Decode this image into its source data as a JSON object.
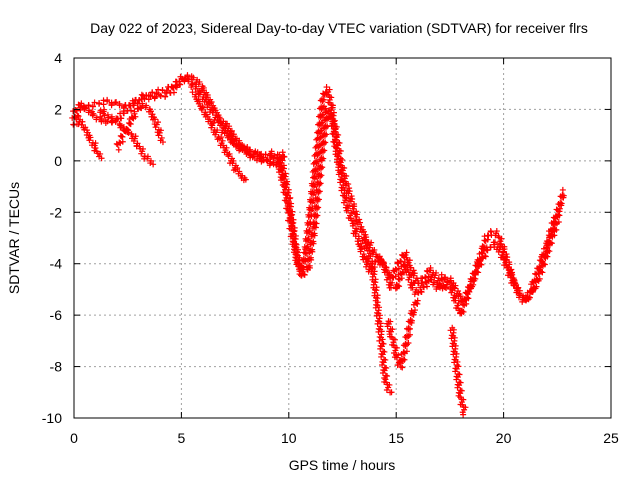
{
  "chart_data": {
    "type": "scatter",
    "title": "Day 022 of 2023, Sidereal Day-to-day VTEC variation (SDTVAR) for receiver flrs",
    "xlabel": "GPS time / hours",
    "ylabel": "SDTVAR / TECUs",
    "xlim": [
      0,
      25
    ],
    "ylim": [
      -10,
      4
    ],
    "xticks": [
      0,
      5,
      10,
      15,
      20,
      25
    ],
    "yticks": [
      -10,
      -8,
      -6,
      -4,
      -2,
      0,
      2,
      4
    ],
    "grid": true,
    "legend": "none",
    "marker": "plus",
    "color": "#ff0000",
    "series": [
      {
        "x": [
          0.0,
          0.3,
          0.6,
          1.0,
          1.5,
          2.0,
          2.4,
          2.8,
          3.2,
          3.6,
          4.0,
          4.4,
          4.7,
          5.0,
          5.3,
          5.6,
          5.9,
          6.2,
          6.5,
          6.8,
          7.1,
          7.4,
          7.7,
          8.0,
          8.4,
          8.8,
          9.2,
          9.5,
          9.8,
          10.0,
          10.2,
          10.4,
          10.6,
          10.8,
          11.0,
          11.2,
          11.4,
          11.6,
          11.8,
          12.0,
          12.2,
          12.4,
          12.6,
          12.8,
          13.0,
          13.2,
          13.4,
          13.6,
          13.8,
          14.0,
          14.2,
          14.4,
          14.6,
          14.8,
          15.0,
          15.2,
          15.4,
          15.6,
          15.8,
          16.0,
          16.2,
          16.4,
          16.6,
          16.8,
          17.0,
          17.2,
          17.4,
          17.6,
          17.8,
          18.0,
          18.2,
          18.4,
          18.6,
          18.8,
          19.0,
          19.2,
          19.4,
          19.6,
          19.8,
          20.0,
          20.2,
          20.4,
          20.6,
          20.8,
          21.0,
          21.2,
          21.4,
          21.6,
          21.8,
          22.0,
          22.2,
          22.4,
          22.6,
          22.8
        ],
        "y": [
          1.6,
          2.0,
          2.1,
          2.2,
          2.3,
          2.2,
          2.1,
          2.3,
          2.5,
          2.6,
          2.7,
          2.8,
          3.0,
          3.2,
          3.1,
          2.9,
          2.6,
          2.2,
          1.8,
          1.4,
          1.0,
          0.7,
          0.5,
          0.4,
          0.3,
          0.2,
          0.3,
          0.0,
          -1.0,
          -2.0,
          -3.0,
          -4.0,
          -4.3,
          -3.5,
          -2.0,
          -0.5,
          1.0,
          2.5,
          2.8,
          2.0,
          0.5,
          -0.5,
          -1.5,
          -2.0,
          -2.5,
          -3.0,
          -3.5,
          -4.0,
          -4.3,
          -4.0,
          -3.8,
          -4.0,
          -4.5,
          -5.0,
          -5.0,
          -4.5,
          -4.0,
          -4.5,
          -5.0,
          -5.2,
          -5.0,
          -4.8,
          -4.5,
          -4.8,
          -5.0,
          -4.5,
          -4.8,
          -5.0,
          -5.5,
          -6.0,
          -5.5,
          -5.0,
          -4.5,
          -4.0,
          -3.5,
          -3.0,
          -2.8,
          -2.8,
          -3.0,
          -3.5,
          -4.0,
          -4.5,
          -5.0,
          -5.3,
          -5.5,
          -5.2,
          -4.8,
          -4.3,
          -3.8,
          -3.3,
          -2.8,
          -2.3,
          -1.8,
          -1.2
        ]
      },
      {
        "x": [
          0.0,
          0.3,
          0.6,
          0.9,
          1.2,
          1.6,
          2.0,
          2.4,
          2.8,
          3.2,
          3.6,
          4.0,
          4.4,
          4.8,
          5.2,
          5.6,
          6.0,
          6.4,
          6.8,
          7.2,
          7.6,
          8.0,
          8.4,
          8.8,
          9.2,
          9.6,
          10.0,
          10.3,
          10.6,
          10.9,
          11.2,
          11.5,
          11.8,
          12.1,
          12.4,
          12.7,
          13.0,
          13.3,
          13.6,
          13.9,
          14.2,
          14.5,
          14.8,
          15.1,
          15.4,
          15.7,
          16.0,
          16.3,
          16.6,
          16.9,
          17.2,
          17.5,
          17.8,
          18.1,
          18.4,
          18.7,
          19.0,
          19.3,
          19.6,
          19.9,
          20.2,
          20.5,
          20.8,
          21.1,
          21.4,
          21.7,
          22.0,
          22.3,
          22.6
        ],
        "y": [
          1.9,
          2.2,
          2.0,
          1.8,
          1.6,
          1.5,
          1.6,
          1.9,
          2.2,
          2.4,
          2.5,
          2.5,
          2.6,
          2.9,
          3.3,
          3.2,
          2.8,
          2.2,
          1.6,
          1.1,
          0.6,
          0.3,
          0.1,
          0.0,
          0.1,
          0.2,
          -1.5,
          -3.2,
          -4.5,
          -4.2,
          -2.5,
          0.0,
          2.0,
          1.5,
          0.0,
          -1.0,
          -1.8,
          -2.5,
          -3.0,
          -3.5,
          -3.8,
          -4.2,
          -4.6,
          -4.0,
          -3.6,
          -4.2,
          -4.8,
          -4.6,
          -4.2,
          -4.6,
          -5.0,
          -4.6,
          -5.0,
          -5.5,
          -5.0,
          -4.4,
          -3.8,
          -3.4,
          -3.2,
          -3.6,
          -4.2,
          -4.8,
          -5.2,
          -5.4,
          -5.0,
          -4.4,
          -3.6,
          -2.8,
          -2.0
        ]
      },
      {
        "x": [
          0.0,
          0.2,
          0.4,
          0.6,
          0.8,
          1.0,
          1.2
        ],
        "y": [
          1.4,
          1.6,
          1.4,
          1.1,
          0.8,
          0.5,
          0.1
        ]
      },
      {
        "x": [
          1.2,
          1.5,
          1.8,
          2.1,
          2.4,
          2.7,
          3.0,
          3.3,
          3.6
        ],
        "y": [
          2.0,
          1.8,
          1.6,
          1.4,
          1.2,
          1.0,
          0.6,
          0.2,
          -0.1
        ]
      },
      {
        "x": [
          2.0,
          2.3,
          2.6,
          2.9,
          3.2,
          3.5,
          3.8,
          4.1
        ],
        "y": [
          0.5,
          1.0,
          1.5,
          1.9,
          2.2,
          2.0,
          1.5,
          0.8
        ]
      },
      {
        "x": [
          5.6,
          6.0,
          6.4,
          6.8,
          7.2,
          7.6,
          8.0
        ],
        "y": [
          2.6,
          2.0,
          1.4,
          0.8,
          0.2,
          -0.4,
          -0.8
        ]
      },
      {
        "x": [
          7.0,
          7.4,
          7.8,
          8.2,
          8.6,
          9.0,
          9.4,
          9.8
        ],
        "y": [
          1.5,
          1.0,
          0.6,
          0.4,
          0.2,
          0.0,
          -0.2,
          0.3
        ]
      },
      {
        "x": [
          13.5,
          13.7,
          13.9,
          14.1,
          14.3,
          14.5,
          14.7
        ],
        "y": [
          -3.0,
          -3.6,
          -4.2,
          -5.5,
          -7.0,
          -8.5,
          -9.0
        ]
      },
      {
        "x": [
          14.6,
          14.8,
          15.0,
          15.2,
          15.4,
          15.6,
          15.8,
          16.0
        ],
        "y": [
          -6.2,
          -6.8,
          -7.5,
          -8.0,
          -7.4,
          -6.5,
          -5.8,
          -5.4
        ]
      },
      {
        "x": [
          17.6,
          17.8,
          18.0,
          18.2
        ],
        "y": [
          -6.5,
          -8.0,
          -9.2,
          -9.8
        ]
      }
    ]
  }
}
